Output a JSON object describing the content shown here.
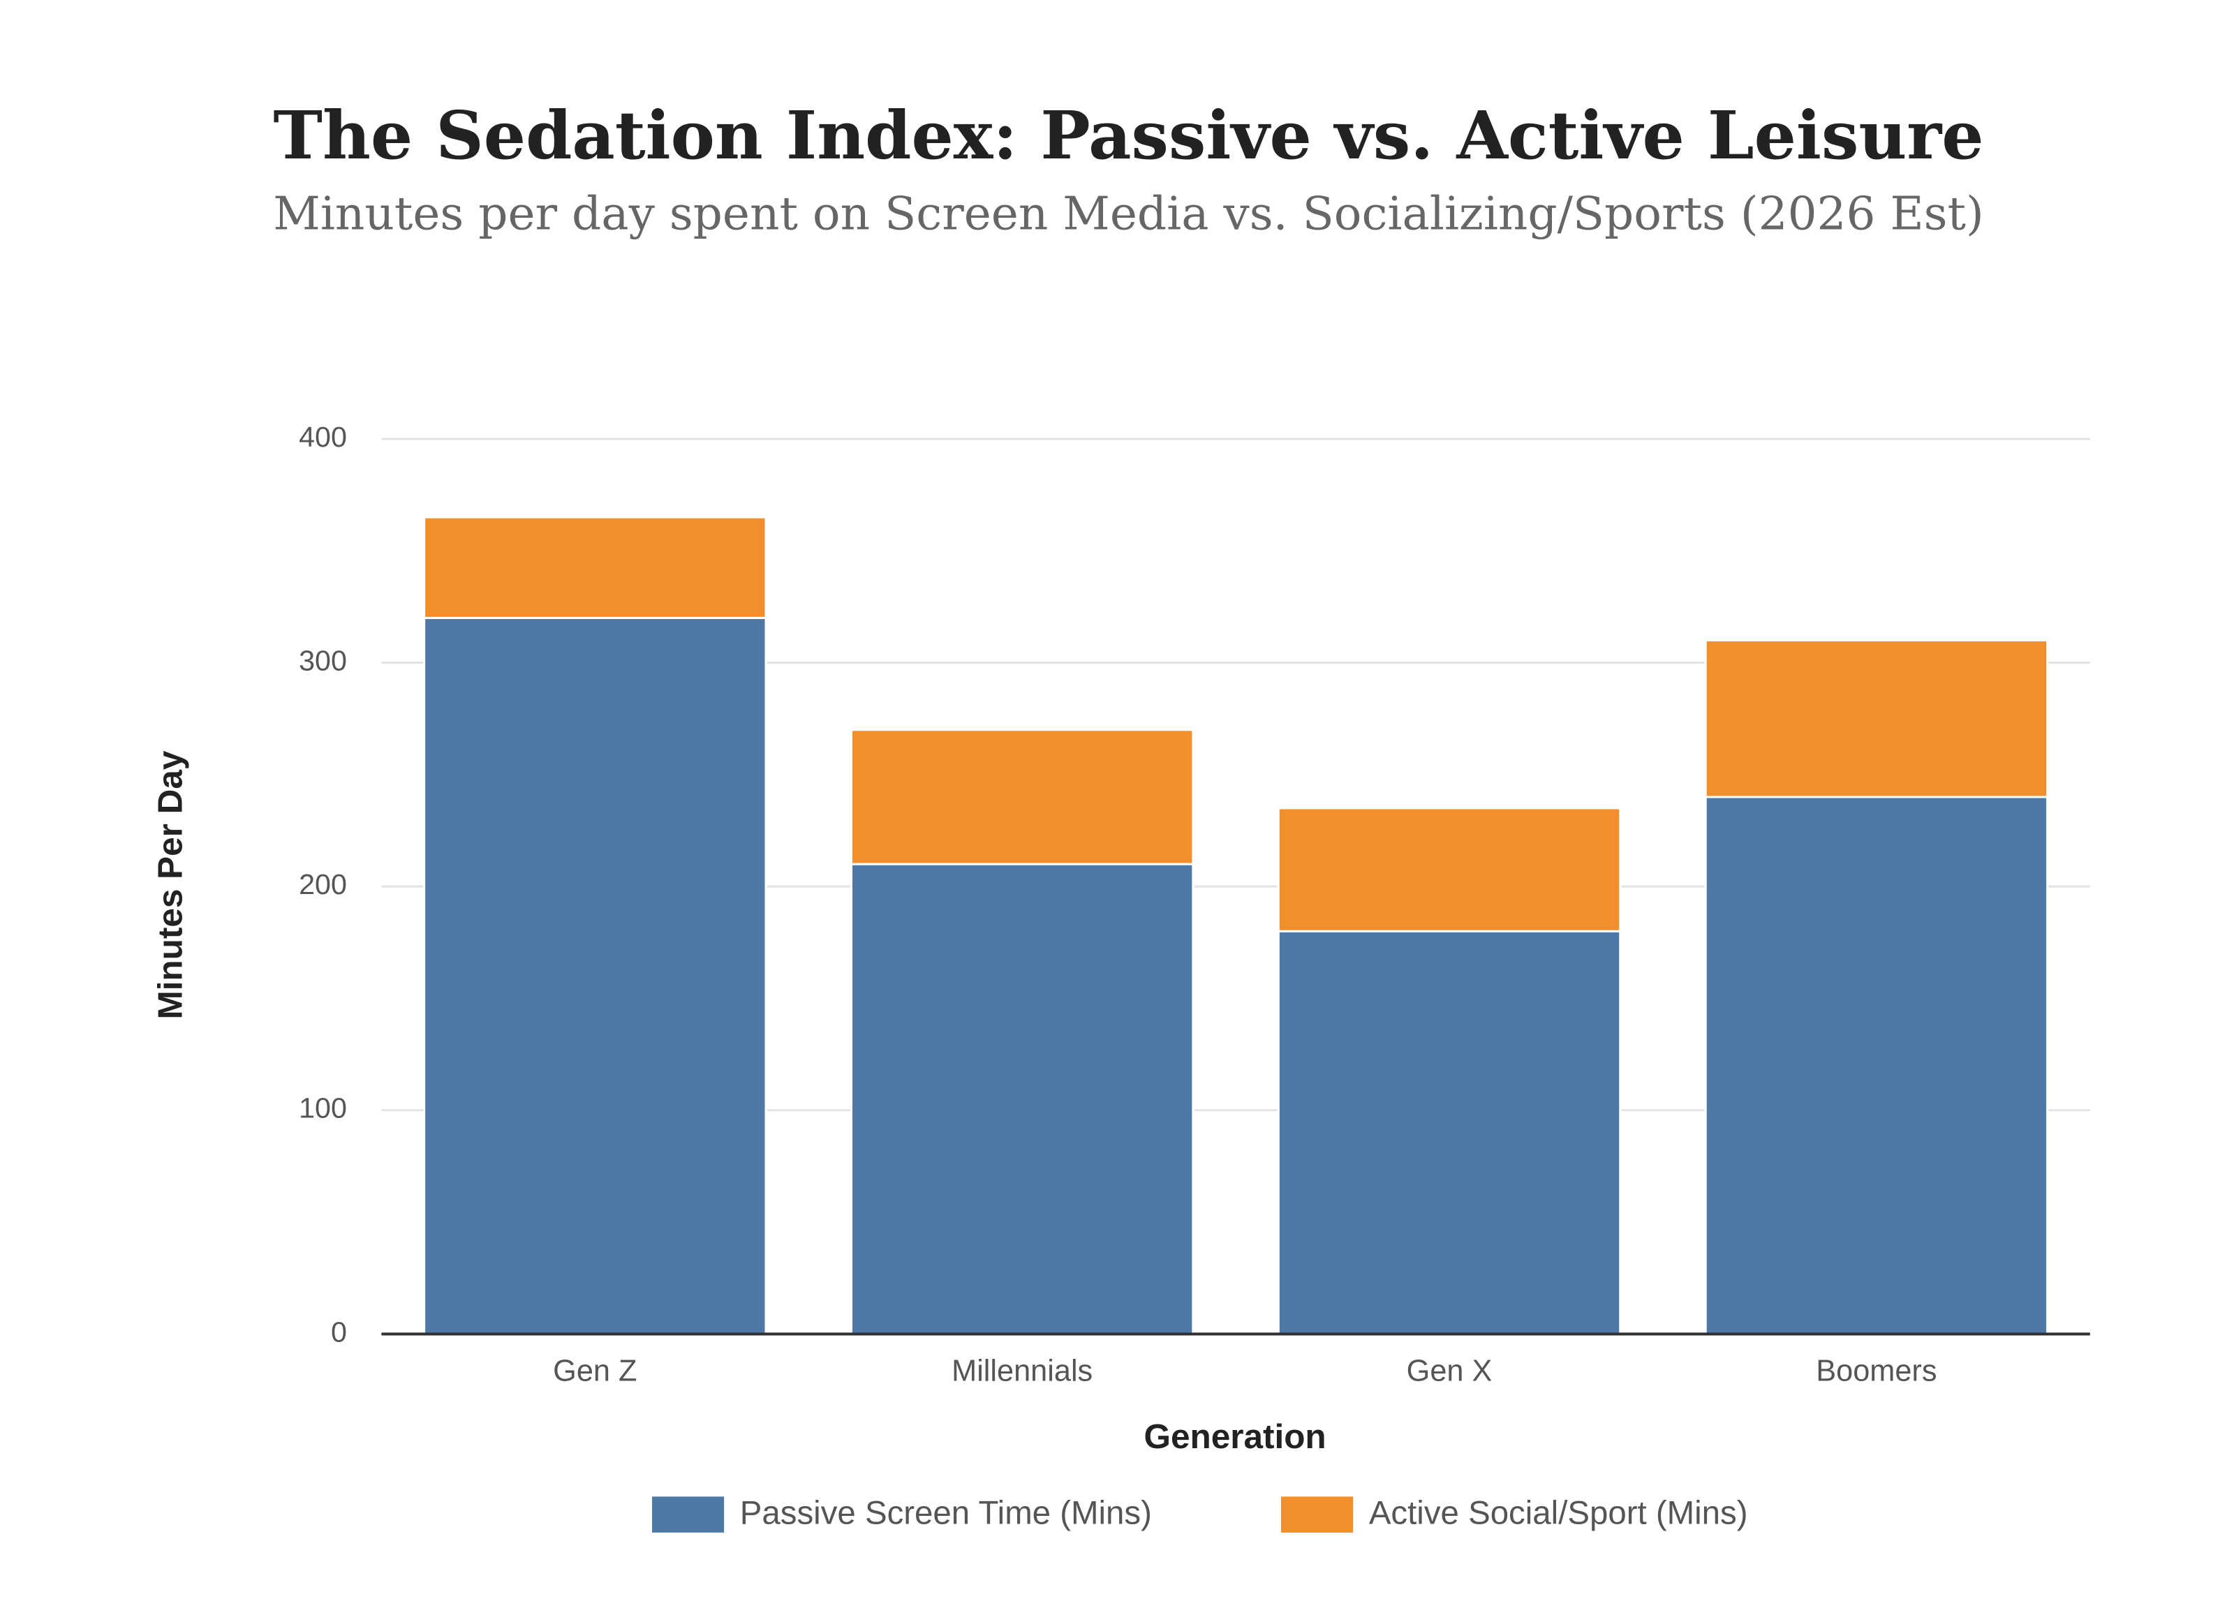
{
  "chart_data": {
    "type": "stacked-bar",
    "title": "The Sedation Index: Passive vs. Active Leisure",
    "subtitle": "Minutes per day spent on Screen Media vs. Socializing/Sports (2026 Est)",
    "x_label": "Generation",
    "y_label": "Minutes Per Day",
    "categories": [
      "Gen Z",
      "Millennials",
      "Gen X",
      "Boomers"
    ],
    "series": [
      {
        "name": "Passive Screen Time (Mins)",
        "color": "#4e79a7",
        "values": [
          320,
          210,
          180,
          240
        ]
      },
      {
        "name": "Active Social/Sport (Mins)",
        "color": "#f28e2b",
        "values": [
          45,
          60,
          55,
          70
        ]
      }
    ],
    "ylim": [
      0,
      400
    ],
    "yticks": [
      0,
      100,
      200,
      300,
      400
    ],
    "grid": true,
    "legend": "bottom"
  }
}
